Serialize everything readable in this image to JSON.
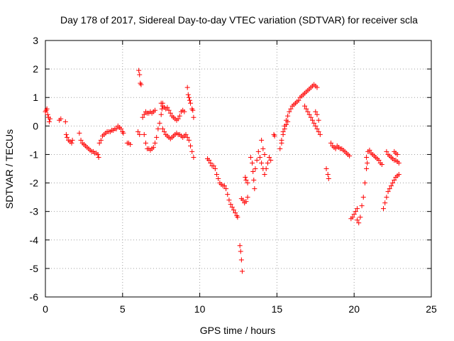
{
  "chart_data": {
    "type": "scatter",
    "title": "Day 178 of 2017, Sidereal Day-to-day VTEC variation (SDTVAR) for receiver scla",
    "xlabel": "GPS time / hours",
    "ylabel": "SDTVAR / TECUs",
    "xlim": [
      0,
      25
    ],
    "ylim": [
      -6,
      3
    ],
    "xticks": [
      0,
      5,
      10,
      15,
      20,
      25
    ],
    "xtick_labels": [
      "0",
      "5",
      "10",
      "15",
      "20",
      "25"
    ],
    "yticks": [
      -6,
      -5,
      -4,
      -3,
      -2,
      -1,
      0,
      1,
      2,
      3
    ],
    "ytick_labels": [
      "-6",
      "-5",
      "-4",
      "-3",
      "-2",
      "-1",
      "0",
      "1",
      "2",
      "3"
    ],
    "grid": true,
    "marker": "+",
    "marker_color": "#ff0000",
    "series": [
      {
        "name": "SDTVAR",
        "points": [
          [
            0.0,
            0.5
          ],
          [
            0.05,
            0.55
          ],
          [
            0.1,
            0.6
          ],
          [
            0.15,
            0.4
          ],
          [
            0.2,
            0.3
          ],
          [
            0.25,
            0.15
          ],
          [
            0.3,
            0.25
          ],
          [
            0.9,
            0.2
          ],
          [
            1.0,
            0.25
          ],
          [
            1.3,
            0.15
          ],
          [
            1.35,
            -0.3
          ],
          [
            1.4,
            -0.4
          ],
          [
            1.5,
            -0.5
          ],
          [
            1.6,
            -0.55
          ],
          [
            1.7,
            -0.6
          ],
          [
            1.75,
            -0.5
          ],
          [
            2.2,
            -0.25
          ],
          [
            2.3,
            -0.5
          ],
          [
            2.4,
            -0.6
          ],
          [
            2.5,
            -0.65
          ],
          [
            2.6,
            -0.7
          ],
          [
            2.7,
            -0.75
          ],
          [
            2.8,
            -0.8
          ],
          [
            2.9,
            -0.85
          ],
          [
            3.0,
            -0.9
          ],
          [
            3.1,
            -0.9
          ],
          [
            3.2,
            -0.95
          ],
          [
            3.3,
            -0.95
          ],
          [
            3.4,
            -1.0
          ],
          [
            3.45,
            -1.1
          ],
          [
            3.5,
            -0.6
          ],
          [
            3.6,
            -0.5
          ],
          [
            3.7,
            -0.35
          ],
          [
            3.8,
            -0.3
          ],
          [
            3.9,
            -0.25
          ],
          [
            4.0,
            -0.2
          ],
          [
            4.1,
            -0.2
          ],
          [
            4.2,
            -0.2
          ],
          [
            4.3,
            -0.15
          ],
          [
            4.4,
            -0.15
          ],
          [
            4.5,
            -0.1
          ],
          [
            4.6,
            -0.1
          ],
          [
            4.7,
            0.0
          ],
          [
            4.8,
            -0.05
          ],
          [
            4.9,
            -0.1
          ],
          [
            5.0,
            -0.2
          ],
          [
            5.05,
            -0.25
          ],
          [
            5.3,
            -0.6
          ],
          [
            5.4,
            -0.6
          ],
          [
            5.5,
            -0.65
          ],
          [
            6.0,
            -0.2
          ],
          [
            6.1,
            -0.3
          ],
          [
            6.05,
            1.95
          ],
          [
            6.1,
            1.8
          ],
          [
            6.15,
            1.5
          ],
          [
            6.2,
            1.45
          ],
          [
            6.3,
            0.3
          ],
          [
            6.4,
            0.4
          ],
          [
            6.5,
            0.5
          ],
          [
            6.6,
            0.45
          ],
          [
            6.7,
            0.45
          ],
          [
            6.8,
            0.5
          ],
          [
            6.9,
            0.45
          ],
          [
            7.0,
            0.5
          ],
          [
            7.1,
            0.55
          ],
          [
            6.4,
            -0.3
          ],
          [
            6.5,
            -0.6
          ],
          [
            6.6,
            -0.8
          ],
          [
            6.7,
            -0.8
          ],
          [
            6.8,
            -0.85
          ],
          [
            6.9,
            -0.8
          ],
          [
            7.0,
            -0.75
          ],
          [
            7.1,
            -0.6
          ],
          [
            7.2,
            -0.4
          ],
          [
            7.3,
            -0.1
          ],
          [
            7.4,
            0.1
          ],
          [
            7.5,
            0.4
          ],
          [
            7.55,
            0.6
          ],
          [
            7.6,
            0.8
          ],
          [
            7.5,
            0.8
          ],
          [
            7.6,
            0.7
          ],
          [
            7.7,
            0.65
          ],
          [
            7.8,
            0.6
          ],
          [
            7.9,
            0.65
          ],
          [
            8.0,
            0.55
          ],
          [
            8.1,
            0.45
          ],
          [
            8.2,
            0.35
          ],
          [
            8.3,
            0.3
          ],
          [
            8.4,
            0.25
          ],
          [
            8.5,
            0.2
          ],
          [
            8.6,
            0.25
          ],
          [
            8.7,
            0.35
          ],
          [
            8.8,
            0.5
          ],
          [
            8.9,
            0.55
          ],
          [
            9.0,
            0.5
          ],
          [
            7.6,
            -0.1
          ],
          [
            7.7,
            -0.2
          ],
          [
            7.8,
            -0.3
          ],
          [
            7.9,
            -0.35
          ],
          [
            8.0,
            -0.4
          ],
          [
            8.1,
            -0.45
          ],
          [
            8.2,
            -0.4
          ],
          [
            8.3,
            -0.35
          ],
          [
            8.4,
            -0.3
          ],
          [
            8.5,
            -0.25
          ],
          [
            8.6,
            -0.3
          ],
          [
            8.7,
            -0.3
          ],
          [
            8.8,
            -0.35
          ],
          [
            8.9,
            -0.4
          ],
          [
            9.0,
            -0.35
          ],
          [
            9.1,
            -0.3
          ],
          [
            9.2,
            1.35
          ],
          [
            9.25,
            1.1
          ],
          [
            9.3,
            1.0
          ],
          [
            9.35,
            0.9
          ],
          [
            9.4,
            0.8
          ],
          [
            9.5,
            0.6
          ],
          [
            9.55,
            0.55
          ],
          [
            9.6,
            0.3
          ],
          [
            9.2,
            -0.4
          ],
          [
            9.3,
            -0.5
          ],
          [
            9.4,
            -0.7
          ],
          [
            9.5,
            -0.9
          ],
          [
            9.6,
            -1.1
          ],
          [
            10.5,
            -1.15
          ],
          [
            10.6,
            -1.2
          ],
          [
            10.7,
            -1.3
          ],
          [
            10.8,
            -1.4
          ],
          [
            10.9,
            -1.4
          ],
          [
            11.0,
            -1.5
          ],
          [
            11.1,
            -1.7
          ],
          [
            11.2,
            -1.85
          ],
          [
            11.3,
            -2.0
          ],
          [
            11.4,
            -2.05
          ],
          [
            11.5,
            -2.1
          ],
          [
            11.6,
            -2.1
          ],
          [
            11.7,
            -2.2
          ],
          [
            11.8,
            -2.4
          ],
          [
            11.9,
            -2.6
          ],
          [
            12.0,
            -2.75
          ],
          [
            12.1,
            -2.85
          ],
          [
            12.2,
            -2.95
          ],
          [
            12.3,
            -3.05
          ],
          [
            12.4,
            -3.15
          ],
          [
            12.45,
            -3.2
          ],
          [
            12.6,
            -4.2
          ],
          [
            12.65,
            -4.4
          ],
          [
            12.7,
            -4.7
          ],
          [
            12.75,
            -5.1
          ],
          [
            12.7,
            -2.55
          ],
          [
            12.8,
            -2.6
          ],
          [
            12.9,
            -2.7
          ],
          [
            13.0,
            -2.65
          ],
          [
            13.1,
            -2.5
          ],
          [
            12.95,
            -1.8
          ],
          [
            13.0,
            -1.9
          ],
          [
            13.1,
            -2.0
          ],
          [
            13.3,
            -1.1
          ],
          [
            13.4,
            -1.3
          ],
          [
            13.45,
            -1.6
          ],
          [
            13.5,
            -1.9
          ],
          [
            13.55,
            -2.2
          ],
          [
            13.6,
            -1.5
          ],
          [
            13.7,
            -1.2
          ],
          [
            13.8,
            -0.9
          ],
          [
            13.9,
            -1.1
          ],
          [
            14.0,
            -1.3
          ],
          [
            14.1,
            -1.5
          ],
          [
            14.2,
            -1.7
          ],
          [
            14.3,
            -1.5
          ],
          [
            14.4,
            -1.3
          ],
          [
            14.5,
            -1.1
          ],
          [
            14.6,
            -1.2
          ],
          [
            14.0,
            -0.5
          ],
          [
            14.1,
            -0.8
          ],
          [
            14.2,
            -1.0
          ],
          [
            14.8,
            -0.3
          ],
          [
            14.85,
            -0.35
          ],
          [
            15.2,
            -0.8
          ],
          [
            15.3,
            -0.5
          ],
          [
            15.4,
            -0.2
          ],
          [
            15.5,
            0.0
          ],
          [
            15.6,
            0.2
          ],
          [
            15.7,
            0.35
          ],
          [
            15.8,
            0.5
          ],
          [
            15.9,
            0.6
          ],
          [
            16.0,
            0.7
          ],
          [
            16.1,
            0.75
          ],
          [
            16.2,
            0.8
          ],
          [
            16.3,
            0.85
          ],
          [
            16.4,
            0.9
          ],
          [
            16.5,
            1.0
          ],
          [
            16.6,
            1.05
          ],
          [
            16.7,
            1.1
          ],
          [
            16.8,
            1.15
          ],
          [
            16.9,
            1.2
          ],
          [
            17.0,
            1.25
          ],
          [
            17.1,
            1.3
          ],
          [
            17.2,
            1.35
          ],
          [
            17.3,
            1.4
          ],
          [
            17.4,
            1.45
          ],
          [
            17.5,
            1.4
          ],
          [
            17.6,
            1.35
          ],
          [
            15.3,
            -0.6
          ],
          [
            15.4,
            -0.3
          ],
          [
            15.5,
            -0.1
          ],
          [
            15.6,
            0.05
          ],
          [
            15.7,
            0.15
          ],
          [
            16.8,
            0.7
          ],
          [
            16.9,
            0.6
          ],
          [
            17.0,
            0.5
          ],
          [
            17.1,
            0.4
          ],
          [
            17.2,
            0.3
          ],
          [
            17.3,
            0.2
          ],
          [
            17.4,
            0.1
          ],
          [
            17.5,
            0.0
          ],
          [
            17.6,
            -0.1
          ],
          [
            17.7,
            -0.2
          ],
          [
            17.8,
            -0.3
          ],
          [
            17.5,
            0.5
          ],
          [
            17.6,
            0.4
          ],
          [
            17.7,
            0.2
          ],
          [
            18.2,
            -1.5
          ],
          [
            18.3,
            -1.7
          ],
          [
            18.35,
            -1.85
          ],
          [
            18.5,
            -0.6
          ],
          [
            18.6,
            -0.7
          ],
          [
            18.7,
            -0.75
          ],
          [
            18.8,
            -0.8
          ],
          [
            18.9,
            -0.7
          ],
          [
            19.0,
            -0.75
          ],
          [
            19.1,
            -0.8
          ],
          [
            19.2,
            -0.8
          ],
          [
            19.3,
            -0.85
          ],
          [
            19.4,
            -0.9
          ],
          [
            19.5,
            -0.95
          ],
          [
            19.6,
            -1.0
          ],
          [
            19.7,
            -1.05
          ],
          [
            19.8,
            -3.25
          ],
          [
            19.9,
            -3.2
          ],
          [
            20.0,
            -3.1
          ],
          [
            20.1,
            -3.0
          ],
          [
            20.2,
            -2.9
          ],
          [
            20.2,
            -3.3
          ],
          [
            20.3,
            -3.4
          ],
          [
            20.4,
            -3.2
          ],
          [
            20.5,
            -2.8
          ],
          [
            20.6,
            -2.5
          ],
          [
            20.7,
            -2.0
          ],
          [
            20.8,
            -1.5
          ],
          [
            20.85,
            -1.3
          ],
          [
            20.8,
            -1.1
          ],
          [
            20.9,
            -0.9
          ],
          [
            21.0,
            -0.85
          ],
          [
            21.1,
            -0.95
          ],
          [
            21.2,
            -1.0
          ],
          [
            21.3,
            -1.05
          ],
          [
            21.4,
            -1.1
          ],
          [
            21.5,
            -1.15
          ],
          [
            21.6,
            -1.2
          ],
          [
            21.7,
            -1.3
          ],
          [
            21.8,
            -1.35
          ],
          [
            21.9,
            -2.9
          ],
          [
            22.0,
            -2.7
          ],
          [
            22.1,
            -2.5
          ],
          [
            22.2,
            -2.3
          ],
          [
            22.3,
            -2.2
          ],
          [
            22.4,
            -2.1
          ],
          [
            22.5,
            -2.0
          ],
          [
            22.6,
            -1.9
          ],
          [
            22.7,
            -1.8
          ],
          [
            22.8,
            -1.75
          ],
          [
            22.9,
            -1.7
          ],
          [
            22.1,
            -0.9
          ],
          [
            22.2,
            -1.0
          ],
          [
            22.3,
            -1.05
          ],
          [
            22.4,
            -1.1
          ],
          [
            22.5,
            -1.15
          ],
          [
            22.6,
            -1.2
          ],
          [
            22.7,
            -1.2
          ],
          [
            22.8,
            -1.25
          ],
          [
            22.9,
            -1.3
          ],
          [
            22.6,
            -0.9
          ],
          [
            22.7,
            -0.95
          ],
          [
            22.8,
            -1.0
          ]
        ]
      }
    ]
  }
}
